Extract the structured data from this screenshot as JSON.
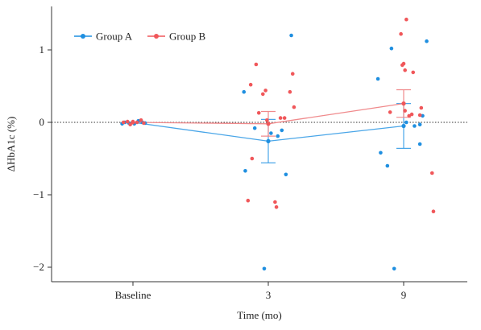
{
  "chart_data": {
    "type": "scatter",
    "xlabel": "Time (mo)",
    "ylabel": "ΔHbA1c (%)",
    "categories": [
      "Baseline",
      "3",
      "9"
    ],
    "ylim": [
      -2.2,
      1.6
    ],
    "yticks": [
      -2,
      -1,
      0,
      1
    ],
    "ytick_labels": [
      "−2",
      "−1",
      "0",
      "1"
    ],
    "reference_line": 0,
    "legend_position": "top-left",
    "series": [
      {
        "name": "Group A",
        "color": "#1f8fe0",
        "means": [
          0,
          -0.26,
          -0.05
        ],
        "errors": [
          0,
          0.3,
          0.31
        ],
        "points": [
          {
            "cat": 0,
            "offset": -0.06,
            "y": 0.0
          },
          {
            "cat": 0,
            "offset": -0.03,
            "y": -0.01
          },
          {
            "cat": 0,
            "offset": 0.01,
            "y": -0.02
          },
          {
            "cat": 0,
            "offset": 0.04,
            "y": 0.02
          },
          {
            "cat": 0,
            "offset": 0.07,
            "y": 0.0
          },
          {
            "cat": 0,
            "offset": -0.08,
            "y": -0.02
          },
          {
            "cat": 0,
            "offset": 0.09,
            "y": -0.01
          },
          {
            "cat": 1,
            "offset": -0.18,
            "y": 0.42
          },
          {
            "cat": 1,
            "offset": -0.17,
            "y": -0.67
          },
          {
            "cat": 1,
            "offset": -0.1,
            "y": -0.08
          },
          {
            "cat": 1,
            "offset": -0.03,
            "y": -2.02
          },
          {
            "cat": 1,
            "offset": 0.02,
            "y": -0.15
          },
          {
            "cat": 1,
            "offset": 0.07,
            "y": -0.19
          },
          {
            "cat": 1,
            "offset": 0.1,
            "y": -0.11
          },
          {
            "cat": 1,
            "offset": 0.13,
            "y": -0.72
          },
          {
            "cat": 1,
            "offset": 0.17,
            "y": 1.2
          },
          {
            "cat": 2,
            "offset": -0.19,
            "y": 0.6
          },
          {
            "cat": 2,
            "offset": -0.17,
            "y": -0.42
          },
          {
            "cat": 2,
            "offset": -0.12,
            "y": -0.6
          },
          {
            "cat": 2,
            "offset": -0.09,
            "y": 1.02
          },
          {
            "cat": 2,
            "offset": -0.07,
            "y": -2.02
          },
          {
            "cat": 2,
            "offset": 0.02,
            "y": 0.0
          },
          {
            "cat": 2,
            "offset": 0.08,
            "y": -0.05
          },
          {
            "cat": 2,
            "offset": 0.12,
            "y": -0.03
          },
          {
            "cat": 2,
            "offset": 0.12,
            "y": -0.3
          },
          {
            "cat": 2,
            "offset": 0.14,
            "y": 0.09
          },
          {
            "cat": 2,
            "offset": 0.17,
            "y": 1.12
          }
        ]
      },
      {
        "name": "Group B",
        "color": "#f0575a",
        "means": [
          0,
          -0.02,
          0.26
        ],
        "errors": [
          0,
          0.17,
          0.19
        ],
        "points": [
          {
            "cat": 0,
            "offset": -0.07,
            "y": 0.0
          },
          {
            "cat": 0,
            "offset": -0.04,
            "y": 0.01
          },
          {
            "cat": 0,
            "offset": -0.02,
            "y": -0.03
          },
          {
            "cat": 0,
            "offset": 0.0,
            "y": 0.01
          },
          {
            "cat": 0,
            "offset": 0.03,
            "y": 0.0
          },
          {
            "cat": 0,
            "offset": 0.06,
            "y": 0.03
          },
          {
            "cat": 0,
            "offset": 0.08,
            "y": -0.01
          },
          {
            "cat": 1,
            "offset": -0.15,
            "y": -1.08
          },
          {
            "cat": 1,
            "offset": -0.13,
            "y": 0.52
          },
          {
            "cat": 1,
            "offset": -0.12,
            "y": -0.5
          },
          {
            "cat": 1,
            "offset": -0.09,
            "y": 0.8
          },
          {
            "cat": 1,
            "offset": -0.07,
            "y": 0.13
          },
          {
            "cat": 1,
            "offset": -0.04,
            "y": 0.39
          },
          {
            "cat": 1,
            "offset": -0.02,
            "y": 0.44
          },
          {
            "cat": 1,
            "offset": -0.01,
            "y": 0.03
          },
          {
            "cat": 1,
            "offset": 0.05,
            "y": -1.1
          },
          {
            "cat": 1,
            "offset": 0.06,
            "y": -1.17
          },
          {
            "cat": 1,
            "offset": 0.09,
            "y": 0.06
          },
          {
            "cat": 1,
            "offset": 0.12,
            "y": 0.06
          },
          {
            "cat": 1,
            "offset": 0.16,
            "y": 0.42
          },
          {
            "cat": 1,
            "offset": 0.18,
            "y": 0.67
          },
          {
            "cat": 1,
            "offset": 0.19,
            "y": 0.21
          },
          {
            "cat": 2,
            "offset": -0.1,
            "y": 0.14
          },
          {
            "cat": 2,
            "offset": -0.02,
            "y": 1.22
          },
          {
            "cat": 2,
            "offset": -0.01,
            "y": 0.79
          },
          {
            "cat": 2,
            "offset": 0.0,
            "y": 0.81
          },
          {
            "cat": 2,
            "offset": 0.01,
            "y": 0.72
          },
          {
            "cat": 2,
            "offset": 0.01,
            "y": 0.16
          },
          {
            "cat": 2,
            "offset": 0.02,
            "y": 1.42
          },
          {
            "cat": 2,
            "offset": 0.04,
            "y": 0.09
          },
          {
            "cat": 2,
            "offset": 0.06,
            "y": 0.11
          },
          {
            "cat": 2,
            "offset": 0.07,
            "y": 0.69
          },
          {
            "cat": 2,
            "offset": 0.12,
            "y": 0.1
          },
          {
            "cat": 2,
            "offset": 0.13,
            "y": 0.2
          },
          {
            "cat": 2,
            "offset": 0.21,
            "y": -0.7
          },
          {
            "cat": 2,
            "offset": 0.22,
            "y": -1.23
          }
        ]
      }
    ]
  }
}
